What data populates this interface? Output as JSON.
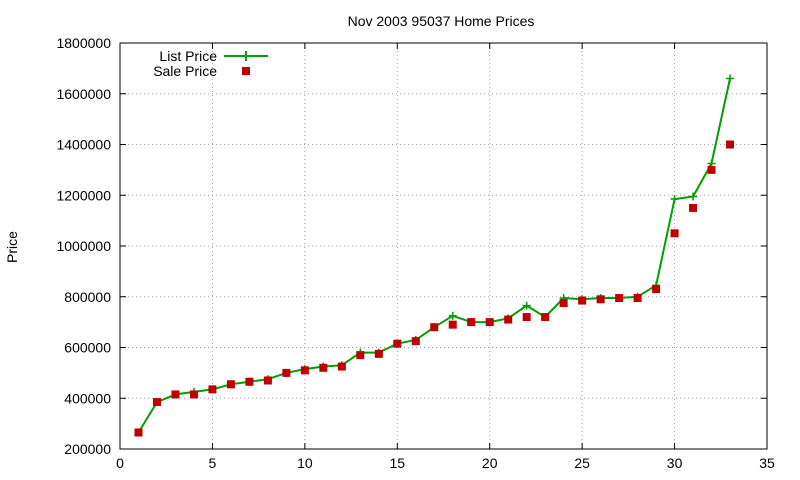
{
  "chart_data": {
    "type": "line",
    "title": "Nov 2003 95037 Home Prices",
    "xlabel": "",
    "ylabel": "Price",
    "xlim": [
      0,
      35
    ],
    "ylim": [
      200000,
      1800000
    ],
    "xticks": [
      0,
      5,
      10,
      15,
      20,
      25,
      30,
      35
    ],
    "yticks": [
      200000,
      400000,
      600000,
      800000,
      1000000,
      1200000,
      1400000,
      1600000,
      1800000
    ],
    "xtick_labels": [
      "0",
      "5",
      "10",
      "15",
      "20",
      "25",
      "30",
      "35"
    ],
    "ytick_labels": [
      "200000",
      "400000",
      "600000",
      "800000",
      "1000000",
      "1200000",
      "1400000",
      "1600000",
      "1800000"
    ],
    "grid": true,
    "legend_position": "top-left",
    "x": [
      1,
      2,
      3,
      4,
      5,
      6,
      7,
      8,
      9,
      10,
      11,
      12,
      13,
      14,
      15,
      16,
      17,
      18,
      19,
      20,
      21,
      22,
      23,
      24,
      25,
      26,
      27,
      28,
      29,
      30,
      31,
      32,
      33
    ],
    "series": [
      {
        "name": "List Price",
        "style": "line-plus",
        "color": "#00a000",
        "values": [
          265000,
          385000,
          415000,
          425000,
          435000,
          455000,
          465000,
          475000,
          500000,
          515000,
          525000,
          530000,
          580000,
          580000,
          615000,
          630000,
          680000,
          725000,
          700000,
          700000,
          715000,
          765000,
          720000,
          795000,
          790000,
          795000,
          795000,
          800000,
          845000,
          1185000,
          1195000,
          1325000,
          1660000
        ]
      },
      {
        "name": "Sale Price",
        "style": "points-square",
        "color": "#c00000",
        "values": [
          265000,
          385000,
          415000,
          415000,
          435000,
          455000,
          465000,
          470000,
          500000,
          510000,
          520000,
          525000,
          570000,
          575000,
          615000,
          625000,
          680000,
          690000,
          700000,
          700000,
          710000,
          720000,
          720000,
          775000,
          785000,
          790000,
          795000,
          795000,
          830000,
          1050000,
          1150000,
          1300000,
          1400000
        ]
      }
    ]
  }
}
